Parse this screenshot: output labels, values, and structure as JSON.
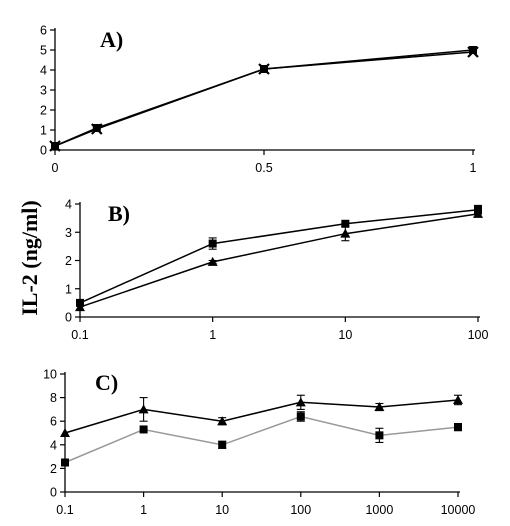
{
  "ylabel": "IL-2 (ng/ml)",
  "chart_data": [
    {
      "type": "line",
      "panel_label": "A)",
      "x_scale": "linear",
      "xlim": [
        0,
        1
      ],
      "ylim": [
        0,
        6
      ],
      "x_ticks": [
        0,
        0.5,
        1
      ],
      "x_tick_labels": [
        "0",
        "0.5",
        "1"
      ],
      "y_ticks": [
        0,
        1,
        2,
        3,
        4,
        5,
        6
      ],
      "y_tick_labels": [
        "0",
        "1",
        "2",
        "3",
        "4",
        "5",
        "6"
      ],
      "grid": false,
      "series": [
        {
          "marker": "square",
          "x": [
            0,
            0.1,
            0.5,
            1
          ],
          "y": [
            0.2,
            1.1,
            4.05,
            5.0
          ],
          "err": [
            0,
            0,
            0,
            0
          ],
          "line_color": "#000000"
        },
        {
          "marker": "x",
          "x": [
            0,
            0.1,
            0.5,
            1
          ],
          "y": [
            0.2,
            1.05,
            4.05,
            4.9
          ],
          "err": [
            0,
            0,
            0,
            0
          ],
          "line_color": "#000000"
        }
      ]
    },
    {
      "type": "line",
      "panel_label": "B)",
      "x_scale": "log",
      "xlim": [
        0.1,
        100
      ],
      "ylim": [
        0,
        4
      ],
      "x_ticks": [
        0.1,
        1,
        10,
        100
      ],
      "x_tick_labels": [
        "0.1",
        "1",
        "10",
        "100"
      ],
      "y_ticks": [
        0,
        1,
        2,
        3,
        4
      ],
      "y_tick_labels": [
        "0",
        "1",
        "2",
        "3",
        "4"
      ],
      "grid": false,
      "series": [
        {
          "marker": "square",
          "x": [
            0.1,
            1,
            10,
            100
          ],
          "y": [
            0.5,
            2.6,
            3.3,
            3.8
          ],
          "err": [
            0,
            0.2,
            0,
            0.15
          ],
          "line_color": "#000000"
        },
        {
          "marker": "triangle",
          "x": [
            0.1,
            1,
            10,
            100
          ],
          "y": [
            0.35,
            1.95,
            2.95,
            3.65
          ],
          "err": [
            0,
            0.05,
            0.25,
            0
          ],
          "line_color": "#000000"
        }
      ]
    },
    {
      "type": "line",
      "panel_label": "C)",
      "x_scale": "log",
      "xlim": [
        0.1,
        10000
      ],
      "ylim": [
        0,
        10
      ],
      "x_ticks": [
        0.1,
        1,
        10,
        100,
        1000,
        10000
      ],
      "x_tick_labels": [
        "0.1",
        "1",
        "10",
        "100",
        "1000",
        "10000"
      ],
      "y_ticks": [
        0,
        2,
        4,
        6,
        8,
        10
      ],
      "y_tick_labels": [
        "0",
        "2",
        "4",
        "6",
        "8",
        "10"
      ],
      "grid": false,
      "series": [
        {
          "marker": "triangle",
          "x": [
            0.1,
            1,
            10,
            100,
            1000,
            10000
          ],
          "y": [
            5.0,
            7.0,
            6.0,
            7.6,
            7.2,
            7.8
          ],
          "err": [
            0,
            1.0,
            0.3,
            0.6,
            0.3,
            0.4
          ],
          "line_color": "#000000"
        },
        {
          "marker": "square",
          "x": [
            0.1,
            1,
            10,
            100,
            1000,
            10000
          ],
          "y": [
            2.5,
            5.3,
            4.0,
            6.4,
            4.8,
            5.5
          ],
          "err": [
            0,
            0,
            0.3,
            0.4,
            0.6,
            0.3
          ],
          "line_color": "#999999"
        }
      ]
    }
  ]
}
